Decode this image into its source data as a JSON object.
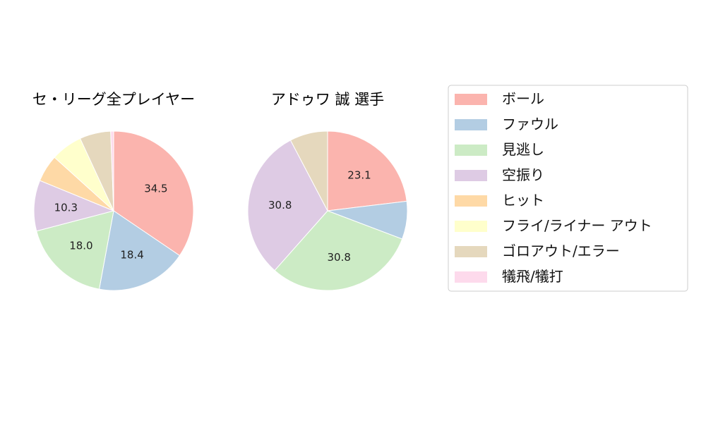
{
  "chart_data": {
    "type": "pie",
    "legend_position": "right",
    "legend": [
      {
        "label": "ボール",
        "color": "#fbb4ae"
      },
      {
        "label": "ファウル",
        "color": "#b3cde3"
      },
      {
        "label": "見逃し",
        "color": "#ccebc5"
      },
      {
        "label": "空振り",
        "color": "#decbe4"
      },
      {
        "label": "ヒット",
        "color": "#fed9a6"
      },
      {
        "label": "フライ/ライナー アウト",
        "color": "#ffffcc"
      },
      {
        "label": "ゴロアウト/エラー",
        "color": "#e5d8bd"
      },
      {
        "label": "犠飛/犠打",
        "color": "#fddaec"
      }
    ],
    "charts": [
      {
        "title": "セ・リーグ全プレイヤー",
        "values": [
          34.5,
          18.4,
          18.0,
          10.3,
          5.5,
          6.4,
          6.3,
          0.6
        ],
        "labels": [
          "34.5",
          "18.4",
          "18.0",
          "10.3",
          "",
          "",
          "",
          ""
        ]
      },
      {
        "title": "アドゥワ 誠  選手",
        "values": [
          23.1,
          7.7,
          30.8,
          30.8,
          0,
          0,
          7.7,
          0
        ],
        "labels": [
          "23.1",
          "",
          "30.8",
          "30.8",
          "",
          "",
          "",
          ""
        ]
      }
    ]
  }
}
